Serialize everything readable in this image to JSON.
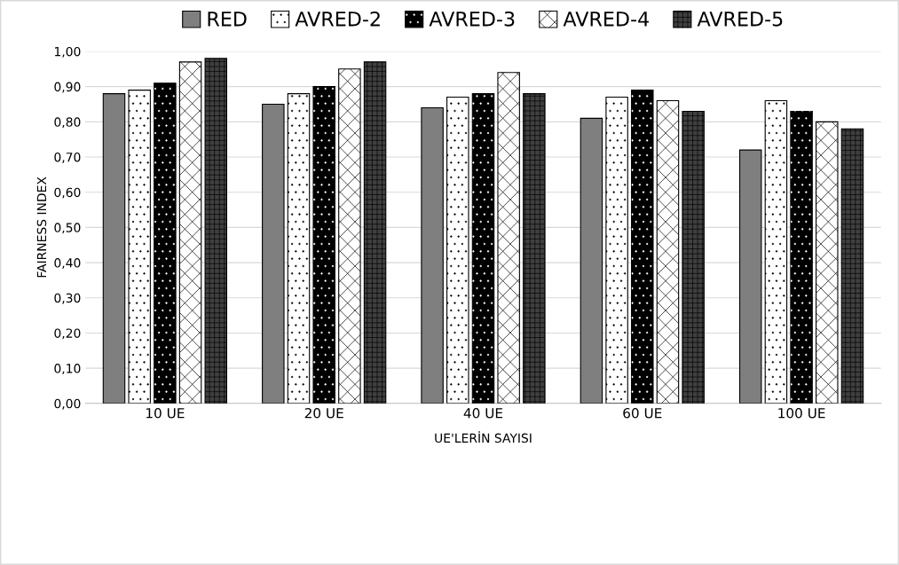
{
  "chart_data": {
    "type": "bar",
    "categories": [
      "10 UE",
      "20 UE",
      "40 UE",
      "60 UE",
      "100 UE"
    ],
    "series": [
      {
        "name": "RED",
        "color": "#7f7f7f",
        "values": [
          0.88,
          0.85,
          0.84,
          0.81,
          0.72
        ]
      },
      {
        "name": "AVRED-2",
        "color": "#ffffff",
        "values": [
          0.89,
          0.88,
          0.87,
          0.87,
          0.86
        ]
      },
      {
        "name": "AVRED-3",
        "color": "#000000",
        "values": [
          0.91,
          0.9,
          0.88,
          0.89,
          0.83
        ]
      },
      {
        "name": "AVRED-4",
        "color": "#ffffff",
        "values": [
          0.97,
          0.95,
          0.94,
          0.86,
          0.8
        ]
      },
      {
        "name": "AVRED-5",
        "color": "#404040",
        "values": [
          0.98,
          0.97,
          0.88,
          0.83,
          0.78
        ]
      }
    ],
    "xlabel": "UE'LERİN SAYISI",
    "ylabel": "FAIRNESS INDEX",
    "ylim": [
      0,
      1
    ],
    "yticks": [
      {
        "value": 0,
        "label": "0,00"
      },
      {
        "value": 0.1,
        "label": "0,10"
      },
      {
        "value": 0.2,
        "label": "0,20"
      },
      {
        "value": 0.3,
        "label": "0,30"
      },
      {
        "value": 0.4,
        "label": "0,40"
      },
      {
        "value": 0.5,
        "label": "0,50"
      },
      {
        "value": 0.6,
        "label": "0,60"
      },
      {
        "value": 0.7,
        "label": "0,70"
      },
      {
        "value": 0.8,
        "label": "0,80"
      },
      {
        "value": 0.9,
        "label": "0,90"
      },
      {
        "value": 1,
        "label": "1,00"
      }
    ],
    "grid": "y",
    "legend": "top"
  }
}
